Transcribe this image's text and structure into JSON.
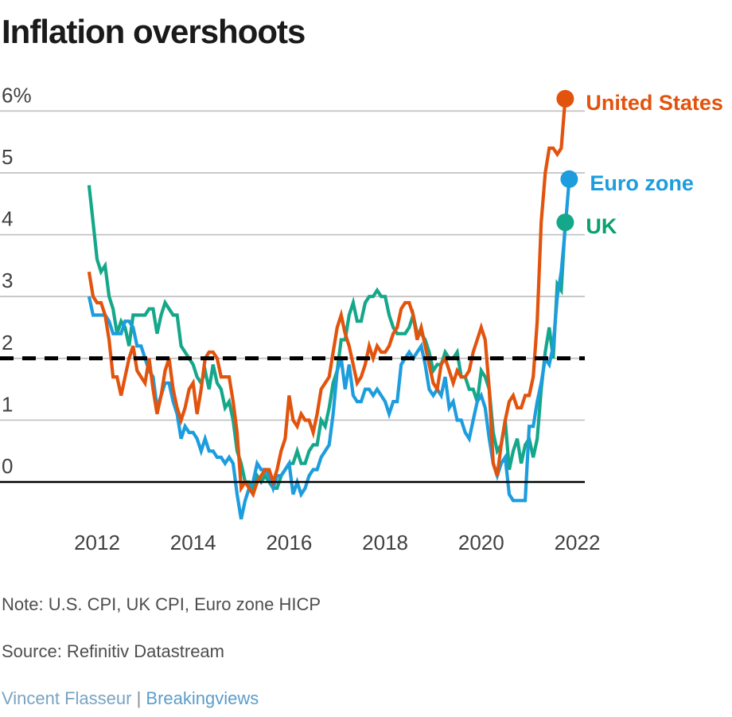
{
  "title": "Inflation overshoots",
  "note": "Note: U.S. CPI, UK CPI, Euro zone HICP",
  "source": "Source: Refinitiv Datastream",
  "credit": {
    "author": "Vincent Flasseur",
    "separator": "|",
    "publication": "Breakingviews"
  },
  "colors": {
    "title": "#1a1a1a",
    "axis_text": "#414141",
    "gridline": "#c3c3c3",
    "target_line": "#000000",
    "zero_line": "#000000",
    "note_text": "#4d4d4d",
    "credit_author": "#7aa3c2",
    "credit_publication": "#5c9dcb"
  },
  "chart_data": {
    "type": "line",
    "unit": "percent year-on-year",
    "grid": true,
    "legend_position": "end-of-line-right",
    "x_axis": {
      "ticks": [
        "2012",
        "2014",
        "2016",
        "2018",
        "2020",
        "2022"
      ],
      "tick_years": [
        2012,
        2014,
        2016,
        2018,
        2020,
        2022
      ],
      "range_years": [
        2011.8,
        2022.3
      ]
    },
    "y_axis": {
      "ticks": [
        {
          "label": "6%",
          "value": 6
        },
        {
          "label": "5",
          "value": 5
        },
        {
          "label": "4",
          "value": 4
        },
        {
          "label": "3",
          "value": 3
        },
        {
          "label": "2",
          "value": 2
        },
        {
          "label": "1",
          "value": 1
        },
        {
          "label": "0",
          "value": 0
        }
      ],
      "range": [
        -0.8,
        6.5
      ]
    },
    "annotations": {
      "target_line_value": 2,
      "target_line_style": "dashed",
      "zero_line_value": 0
    },
    "series": [
      {
        "name": "UK",
        "color": "#15a78a",
        "label_color": "#0aa06f",
        "start_year": 2011,
        "start_month": 11,
        "end_value": 4.2,
        "values": [
          4.8,
          4.2,
          3.6,
          3.4,
          3.5,
          3.0,
          2.8,
          2.4,
          2.6,
          2.5,
          2.2,
          2.7,
          2.7,
          2.7,
          2.7,
          2.8,
          2.8,
          2.4,
          2.7,
          2.9,
          2.8,
          2.7,
          2.7,
          2.2,
          2.1,
          2.0,
          1.9,
          1.7,
          1.6,
          1.8,
          1.5,
          1.9,
          1.6,
          1.5,
          1.2,
          1.3,
          1.0,
          0.5,
          0.3,
          0.0,
          0.0,
          -0.1,
          0.1,
          0.0,
          0.1,
          0.0,
          -0.1,
          -0.1,
          0.1,
          0.2,
          0.3,
          0.3,
          0.5,
          0.3,
          0.3,
          0.5,
          0.6,
          0.6,
          1.0,
          0.9,
          1.2,
          1.6,
          1.8,
          2.3,
          2.3,
          2.7,
          2.9,
          2.6,
          2.6,
          2.9,
          3.0,
          3.0,
          3.1,
          3.0,
          3.0,
          2.7,
          2.5,
          2.4,
          2.4,
          2.4,
          2.5,
          2.7,
          2.4,
          2.4,
          2.3,
          2.1,
          1.8,
          1.9,
          1.9,
          2.1,
          2.0,
          2.0,
          2.1,
          1.7,
          1.7,
          1.5,
          1.5,
          1.3,
          1.8,
          1.7,
          1.5,
          0.8,
          0.5,
          0.6,
          1.0,
          0.2,
          0.5,
          0.7,
          0.3,
          0.6,
          0.7,
          0.4,
          0.7,
          1.5,
          2.1,
          2.5,
          2.0,
          3.2,
          3.1,
          4.2
        ]
      },
      {
        "name": "Euro zone",
        "color": "#1d9dde",
        "label_color": "#1d9dde",
        "start_year": 2011,
        "start_month": 11,
        "end_value": 4.9,
        "values": [
          3.0,
          2.7,
          2.7,
          2.7,
          2.7,
          2.6,
          2.4,
          2.4,
          2.4,
          2.6,
          2.6,
          2.5,
          2.2,
          2.2,
          2.0,
          1.8,
          1.7,
          1.2,
          1.4,
          1.6,
          1.6,
          1.3,
          1.1,
          0.7,
          0.9,
          0.8,
          0.8,
          0.7,
          0.5,
          0.7,
          0.5,
          0.5,
          0.4,
          0.4,
          0.3,
          0.4,
          0.3,
          -0.2,
          -0.6,
          -0.3,
          -0.1,
          0.0,
          0.3,
          0.2,
          0.2,
          0.1,
          -0.1,
          0.1,
          0.1,
          0.2,
          0.3,
          -0.2,
          0.0,
          -0.2,
          -0.1,
          0.1,
          0.2,
          0.2,
          0.4,
          0.5,
          0.6,
          1.1,
          1.8,
          2.0,
          1.5,
          1.9,
          1.4,
          1.3,
          1.3,
          1.5,
          1.5,
          1.4,
          1.5,
          1.4,
          1.3,
          1.1,
          1.3,
          1.3,
          1.9,
          2.0,
          2.1,
          2.0,
          2.1,
          2.2,
          1.9,
          1.5,
          1.4,
          1.5,
          1.4,
          1.7,
          1.2,
          1.3,
          1.0,
          1.0,
          0.8,
          0.7,
          1.0,
          1.3,
          1.4,
          1.2,
          0.7,
          0.3,
          0.1,
          0.3,
          0.4,
          -0.2,
          -0.3,
          -0.3,
          -0.3,
          -0.3,
          0.9,
          0.9,
          1.3,
          1.6,
          2.0,
          1.9,
          2.2,
          3.0,
          3.4,
          4.1,
          4.9
        ]
      },
      {
        "name": "United States",
        "color": "#e2530d",
        "label_color": "#e2530d",
        "start_year": 2011,
        "start_month": 11,
        "end_value": 6.2,
        "values": [
          3.4,
          3.0,
          2.9,
          2.9,
          2.7,
          2.3,
          1.7,
          1.7,
          1.4,
          1.7,
          2.0,
          2.2,
          1.8,
          1.7,
          1.6,
          2.0,
          1.5,
          1.1,
          1.4,
          1.8,
          2.0,
          1.5,
          1.2,
          1.0,
          1.2,
          1.5,
          1.6,
          1.1,
          1.5,
          2.0,
          2.1,
          2.1,
          2.0,
          1.7,
          1.7,
          1.7,
          1.3,
          0.8,
          -0.1,
          0.0,
          -0.1,
          -0.2,
          0.0,
          0.1,
          0.2,
          0.2,
          0.0,
          0.2,
          0.5,
          0.7,
          1.4,
          1.0,
          0.9,
          1.1,
          1.0,
          1.0,
          0.8,
          1.1,
          1.5,
          1.6,
          1.7,
          2.1,
          2.5,
          2.7,
          2.4,
          2.2,
          1.9,
          1.6,
          1.7,
          1.9,
          2.2,
          2.0,
          2.2,
          2.1,
          2.1,
          2.2,
          2.4,
          2.5,
          2.8,
          2.9,
          2.9,
          2.7,
          2.3,
          2.5,
          2.2,
          1.9,
          1.6,
          1.5,
          1.9,
          2.0,
          1.8,
          1.6,
          1.8,
          1.7,
          1.7,
          1.8,
          2.1,
          2.3,
          2.5,
          2.3,
          1.5,
          0.3,
          0.1,
          0.6,
          1.0,
          1.3,
          1.4,
          1.2,
          1.2,
          1.4,
          1.4,
          1.7,
          2.6,
          4.2,
          5.0,
          5.4,
          5.4,
          5.3,
          5.4,
          6.2
        ]
      }
    ]
  }
}
